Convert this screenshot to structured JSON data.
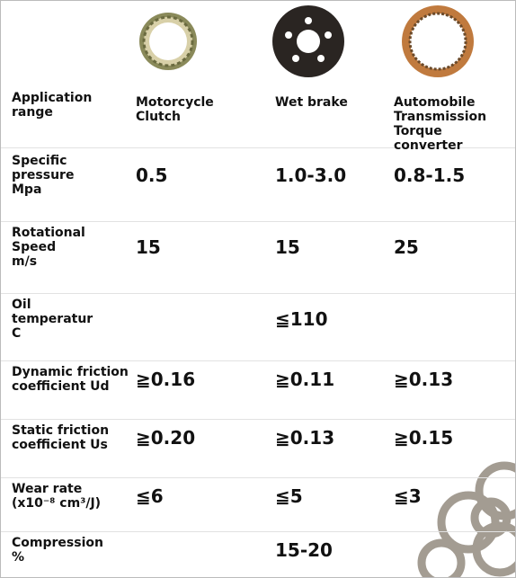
{
  "table": {
    "rows": [
      {
        "label": "Application\nrange",
        "values": [
          "Motorcycle\nClutch",
          "Wet brake",
          "Automobile\nTransmission\nTorque converter"
        ]
      },
      {
        "label": "Specific\npressure\nMpa",
        "values": [
          "0.5",
          "1.0-3.0",
          "0.8-1.5"
        ]
      },
      {
        "label": "Rotational\nSpeed\nm/s",
        "values": [
          "15",
          "15",
          "25"
        ]
      },
      {
        "label": "Oil\ntemperatur\nC",
        "value": "≦110"
      },
      {
        "label": "Dynamic friction\ncoefficient Ud",
        "values": [
          "≧0.16",
          "≧0.11",
          "≧0.13"
        ]
      },
      {
        "label": "Static friction\ncoefficient Us",
        "values": [
          "≧0.20",
          "≧0.13",
          "≧0.15"
        ]
      },
      {
        "label": "Wear rate\n(x10⁻⁸ cm³/J)",
        "values": [
          "≦6",
          "≦5",
          "≦3"
        ]
      },
      {
        "label": "Compression\n%",
        "value": "15-20"
      }
    ]
  }
}
